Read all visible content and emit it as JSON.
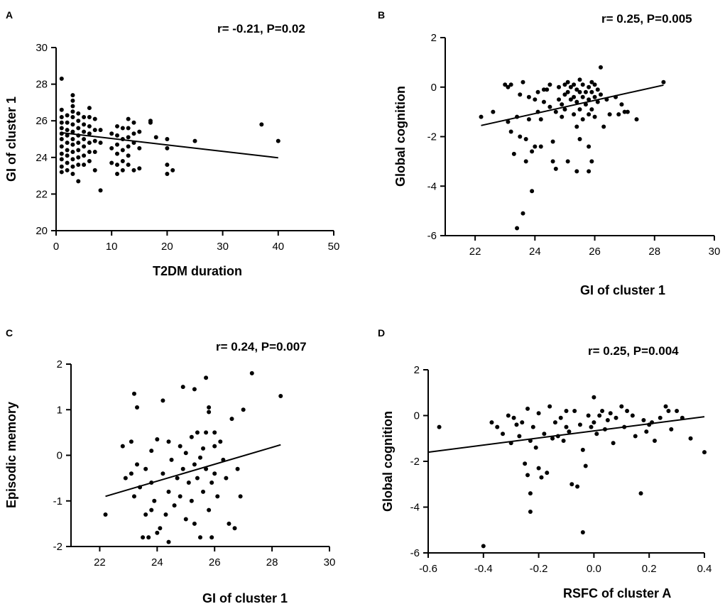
{
  "chart_data": [
    {
      "panel": "A",
      "type": "scatter",
      "stat_text": "r= -0.21, P=0.02",
      "xlabel": "T2DM duration",
      "ylabel": "GI of cluster 1",
      "xlim": [
        0,
        50
      ],
      "ylim": [
        20,
        30
      ],
      "xticks": [
        "0",
        "10",
        "20",
        "30",
        "40",
        "50"
      ],
      "yticks": [
        "20",
        "22",
        "24",
        "26",
        "28",
        "30"
      ],
      "fit_line": {
        "x": [
          1,
          40
        ],
        "y": [
          25.35,
          23.98
        ]
      },
      "points": [
        [
          1,
          28.3
        ],
        [
          1,
          26.6
        ],
        [
          1,
          26.2
        ],
        [
          1,
          25.9
        ],
        [
          1,
          25.6
        ],
        [
          1,
          25.3
        ],
        [
          1,
          25
        ],
        [
          1,
          24.6
        ],
        [
          1,
          24.2
        ],
        [
          1,
          23.9
        ],
        [
          1,
          23.5
        ],
        [
          1,
          23.2
        ],
        [
          2,
          26.3
        ],
        [
          2,
          25.9
        ],
        [
          2,
          25.5
        ],
        [
          2,
          25.2
        ],
        [
          2,
          24.8
        ],
        [
          2,
          24.4
        ],
        [
          2,
          24.1
        ],
        [
          2,
          23.7
        ],
        [
          2,
          23.3
        ],
        [
          3,
          27.4
        ],
        [
          3,
          27.1
        ],
        [
          3,
          26.8
        ],
        [
          3,
          26.5
        ],
        [
          3,
          26.2
        ],
        [
          3,
          25.8
        ],
        [
          3,
          25.4
        ],
        [
          3,
          25
        ],
        [
          3,
          24.7
        ],
        [
          3,
          24.3
        ],
        [
          3,
          23.9
        ],
        [
          3,
          23.5
        ],
        [
          3,
          23.1
        ],
        [
          4,
          26.4
        ],
        [
          4,
          26
        ],
        [
          4,
          25.6
        ],
        [
          4,
          25.2
        ],
        [
          4,
          24.8
        ],
        [
          4,
          24.4
        ],
        [
          4,
          24
        ],
        [
          4,
          23.6
        ],
        [
          4,
          22.7
        ],
        [
          5,
          26.2
        ],
        [
          5,
          25.8
        ],
        [
          5,
          25.4
        ],
        [
          5,
          25
        ],
        [
          5,
          24.6
        ],
        [
          5,
          24.1
        ],
        [
          5,
          23.6
        ],
        [
          6,
          26.7
        ],
        [
          6,
          26.2
        ],
        [
          6,
          25.7
        ],
        [
          6,
          25.3
        ],
        [
          6,
          24.8
        ],
        [
          6,
          24.3
        ],
        [
          6,
          23.8
        ],
        [
          7,
          26.1
        ],
        [
          7,
          25.5
        ],
        [
          7,
          24.9
        ],
        [
          7,
          24.3
        ],
        [
          7,
          23.3
        ],
        [
          8,
          25.5
        ],
        [
          8,
          24.8
        ],
        [
          8,
          22.2
        ],
        [
          10,
          25.3
        ],
        [
          10,
          24.5
        ],
        [
          10,
          23.7
        ],
        [
          11,
          25.7
        ],
        [
          11,
          25.2
        ],
        [
          11,
          24.7
        ],
        [
          11,
          24.2
        ],
        [
          11,
          23.6
        ],
        [
          11,
          23.1
        ],
        [
          12,
          25.6
        ],
        [
          12,
          25
        ],
        [
          12,
          24.4
        ],
        [
          12,
          23.8
        ],
        [
          12,
          23.3
        ],
        [
          13,
          26.1
        ],
        [
          13,
          25.6
        ],
        [
          13,
          25.1
        ],
        [
          13,
          24.6
        ],
        [
          13,
          24.1
        ],
        [
          13,
          23.6
        ],
        [
          14,
          25.9
        ],
        [
          14,
          25.3
        ],
        [
          14,
          24.8
        ],
        [
          14,
          23.3
        ],
        [
          15,
          25.4
        ],
        [
          15,
          24.5
        ],
        [
          15,
          23.4
        ],
        [
          17,
          26
        ],
        [
          17,
          25.9
        ],
        [
          18,
          25.1
        ],
        [
          20,
          25
        ],
        [
          20,
          24.5
        ],
        [
          20,
          23.6
        ],
        [
          20,
          23.1
        ],
        [
          21,
          23.3
        ],
        [
          25,
          24.9
        ],
        [
          37,
          25.8
        ],
        [
          40,
          24.9
        ]
      ]
    },
    {
      "panel": "B",
      "type": "scatter",
      "stat_text": "r= 0.25, P=0.005",
      "xlabel": "GI of cluster 1",
      "ylabel": "Global cognition",
      "xlim": [
        21,
        30
      ],
      "ylim": [
        -6,
        2
      ],
      "xticks": [
        "22",
        "24",
        "26",
        "28",
        "30"
      ],
      "yticks": [
        "-6",
        "-4",
        "-2",
        "0",
        "2"
      ],
      "fit_line": {
        "x": [
          22.2,
          28.3
        ],
        "y": [
          -1.55,
          0.08
        ]
      },
      "points": [
        [
          22.2,
          -1.2
        ],
        [
          22.6,
          -1
        ],
        [
          23,
          0.1
        ],
        [
          23.1,
          0
        ],
        [
          23.2,
          0.1
        ],
        [
          23.1,
          -1.4
        ],
        [
          23.2,
          -1.8
        ],
        [
          23.3,
          -2.7
        ],
        [
          23.4,
          -1.2
        ],
        [
          23.4,
          -5.7
        ],
        [
          23.5,
          -2
        ],
        [
          23.5,
          -0.3
        ],
        [
          23.6,
          0.2
        ],
        [
          23.6,
          -5.1
        ],
        [
          23.7,
          -3
        ],
        [
          23.7,
          -2.1
        ],
        [
          23.8,
          -0.4
        ],
        [
          23.8,
          -1.3
        ],
        [
          23.9,
          -4.2
        ],
        [
          23.9,
          -2.6
        ],
        [
          24,
          -0.5
        ],
        [
          24,
          -2.4
        ],
        [
          24.1,
          -0.2
        ],
        [
          24.1,
          -1
        ],
        [
          24.2,
          -1.3
        ],
        [
          24.2,
          -2.4
        ],
        [
          24.3,
          -0.1
        ],
        [
          24.3,
          -0.6
        ],
        [
          24.4,
          -0.1
        ],
        [
          24.5,
          0.1
        ],
        [
          24.5,
          -0.8
        ],
        [
          24.6,
          -2.2
        ],
        [
          24.6,
          -3
        ],
        [
          24.7,
          -1
        ],
        [
          24.7,
          -3.3
        ],
        [
          24.8,
          0
        ],
        [
          24.8,
          -0.5
        ],
        [
          24.9,
          -0.7
        ],
        [
          24.9,
          -1.2
        ],
        [
          25,
          0.1
        ],
        [
          25,
          -0.3
        ],
        [
          25,
          -0.9
        ],
        [
          25.1,
          0.2
        ],
        [
          25.1,
          -0.2
        ],
        [
          25.1,
          -3
        ],
        [
          25.2,
          0
        ],
        [
          25.2,
          -0.5
        ],
        [
          25.3,
          0.1
        ],
        [
          25.3,
          -0.4
        ],
        [
          25.3,
          -1.1
        ],
        [
          25.4,
          -0.1
        ],
        [
          25.4,
          -0.6
        ],
        [
          25.4,
          -1.6
        ],
        [
          25.4,
          -3.4
        ],
        [
          25.5,
          0.3
        ],
        [
          25.5,
          -0.2
        ],
        [
          25.5,
          -0.9
        ],
        [
          25.5,
          -2.1
        ],
        [
          25.6,
          0.1
        ],
        [
          25.6,
          -0.4
        ],
        [
          25.6,
          -1.3
        ],
        [
          25.7,
          -0.2
        ],
        [
          25.7,
          -0.7
        ],
        [
          25.8,
          0
        ],
        [
          25.8,
          -0.5
        ],
        [
          25.8,
          -1.1
        ],
        [
          25.8,
          -2.4
        ],
        [
          25.8,
          -3.4
        ],
        [
          25.9,
          0.2
        ],
        [
          25.9,
          -0.2
        ],
        [
          25.9,
          -0.9
        ],
        [
          25.9,
          -3
        ],
        [
          26,
          0.1
        ],
        [
          26,
          -0.4
        ],
        [
          26,
          -1.2
        ],
        [
          26.1,
          -0.1
        ],
        [
          26.1,
          -0.6
        ],
        [
          26.2,
          0.8
        ],
        [
          26.2,
          -0.3
        ],
        [
          26.3,
          -1.6
        ],
        [
          26.4,
          -0.5
        ],
        [
          26.5,
          -1.1
        ],
        [
          26.7,
          -0.4
        ],
        [
          26.8,
          -1.1
        ],
        [
          26.9,
          -0.7
        ],
        [
          27,
          -1
        ],
        [
          27.1,
          -1
        ],
        [
          27.4,
          -1.3
        ],
        [
          28.3,
          0.2
        ]
      ]
    },
    {
      "panel": "C",
      "type": "scatter",
      "stat_text": "r= 0.24, P=0.007",
      "xlabel": "GI of cluster 1",
      "ylabel": "Episodic memory",
      "xlim": [
        21,
        30
      ],
      "ylim": [
        -2,
        2
      ],
      "xticks": [
        "22",
        "24",
        "26",
        "28",
        "30"
      ],
      "yticks": [
        "-2",
        "-1",
        "0",
        "1",
        "2"
      ],
      "fit_line": {
        "x": [
          22.2,
          28.3
        ],
        "y": [
          -0.9,
          0.23
        ]
      },
      "points": [
        [
          22.2,
          -1.3
        ],
        [
          22.8,
          0.2
        ],
        [
          22.9,
          -0.5
        ],
        [
          23.1,
          0.3
        ],
        [
          23.1,
          -0.4
        ],
        [
          23.2,
          1.35
        ],
        [
          23.2,
          -0.9
        ],
        [
          23.3,
          1.05
        ],
        [
          23.3,
          -0.2
        ],
        [
          23.4,
          -0.7
        ],
        [
          23.5,
          -1.8
        ],
        [
          23.6,
          -0.3
        ],
        [
          23.6,
          -1.3
        ],
        [
          23.7,
          -1.8
        ],
        [
          23.8,
          0.1
        ],
        [
          23.8,
          -0.6
        ],
        [
          23.8,
          -1.2
        ],
        [
          23.9,
          -1
        ],
        [
          24,
          -1.7
        ],
        [
          24,
          0.35
        ],
        [
          24.1,
          -1.6
        ],
        [
          24.2,
          1.2
        ],
        [
          24.2,
          -0.4
        ],
        [
          24.3,
          -1.3
        ],
        [
          24.4,
          0.3
        ],
        [
          24.4,
          -0.8
        ],
        [
          24.4,
          -1.9
        ],
        [
          24.5,
          -0.1
        ],
        [
          24.6,
          -1.1
        ],
        [
          24.7,
          -0.5
        ],
        [
          24.8,
          0.2
        ],
        [
          24.8,
          -0.9
        ],
        [
          24.9,
          1.5
        ],
        [
          24.9,
          -0.3
        ],
        [
          25,
          -1.4
        ],
        [
          25,
          0.05
        ],
        [
          25.1,
          -0.6
        ],
        [
          25.2,
          0.4
        ],
        [
          25.2,
          -1
        ],
        [
          25.3,
          1.45
        ],
        [
          25.3,
          -0.2
        ],
        [
          25.3,
          -1.5
        ],
        [
          25.4,
          0.5
        ],
        [
          25.4,
          -0.5
        ],
        [
          25.5,
          -0.05
        ],
        [
          25.5,
          -1.8
        ],
        [
          25.6,
          0.15
        ],
        [
          25.6,
          -0.8
        ],
        [
          25.7,
          1.7
        ],
        [
          25.7,
          0.5
        ],
        [
          25.7,
          -0.3
        ],
        [
          25.8,
          1.05
        ],
        [
          25.8,
          0.95
        ],
        [
          25.8,
          -1.2
        ],
        [
          25.9,
          -0.6
        ],
        [
          25.9,
          -1.8
        ],
        [
          26,
          0.5
        ],
        [
          26,
          0.2
        ],
        [
          26,
          -0.4
        ],
        [
          26.1,
          -0.9
        ],
        [
          26.2,
          0.3
        ],
        [
          26.3,
          -0.1
        ],
        [
          26.4,
          -0.5
        ],
        [
          26.5,
          -1.5
        ],
        [
          26.6,
          0.8
        ],
        [
          26.7,
          -1.6
        ],
        [
          26.8,
          -0.3
        ],
        [
          26.9,
          -0.9
        ],
        [
          27,
          1
        ],
        [
          27.3,
          1.8
        ],
        [
          28.3,
          1.3
        ]
      ]
    },
    {
      "panel": "D",
      "type": "scatter",
      "stat_text": "r= 0.25, P=0.004",
      "xlabel": "RSFC of cluster A",
      "ylabel": "Global cognition",
      "xlim": [
        -0.6,
        0.4
      ],
      "ylim": [
        -6,
        2
      ],
      "xticks": [
        "-0.6",
        "-0.4",
        "-0.2",
        "0.0",
        "0.2",
        "0.4"
      ],
      "yticks": [
        "-6",
        "-4",
        "-2",
        "0",
        "2"
      ],
      "fit_line": {
        "x": [
          -0.6,
          0.4
        ],
        "y": [
          -1.6,
          -0.05
        ]
      },
      "points": [
        [
          -0.56,
          -0.5
        ],
        [
          -0.4,
          -5.7
        ],
        [
          -0.37,
          -0.3
        ],
        [
          -0.35,
          -0.5
        ],
        [
          -0.33,
          -0.8
        ],
        [
          -0.31,
          0
        ],
        [
          -0.3,
          -1.2
        ],
        [
          -0.29,
          -0.1
        ],
        [
          -0.28,
          -0.4
        ],
        [
          -0.27,
          -0.9
        ],
        [
          -0.26,
          -0.3
        ],
        [
          -0.25,
          -2.1
        ],
        [
          -0.24,
          0.3
        ],
        [
          -0.24,
          -2.6
        ],
        [
          -0.23,
          -1.1
        ],
        [
          -0.23,
          -3.4
        ],
        [
          -0.23,
          -4.2
        ],
        [
          -0.22,
          -0.5
        ],
        [
          -0.21,
          -1.4
        ],
        [
          -0.2,
          -2.3
        ],
        [
          -0.2,
          0.1
        ],
        [
          -0.19,
          -2.7
        ],
        [
          -0.18,
          -0.8
        ],
        [
          -0.17,
          -2.5
        ],
        [
          -0.16,
          0.4
        ],
        [
          -0.15,
          -1.0
        ],
        [
          -0.14,
          -0.3
        ],
        [
          -0.13,
          -0.9
        ],
        [
          -0.12,
          -0.1
        ],
        [
          -0.11,
          -1.1
        ],
        [
          -0.1,
          0.2
        ],
        [
          -0.1,
          -0.5
        ],
        [
          -0.09,
          -0.7
        ],
        [
          -0.08,
          -3.0
        ],
        [
          -0.07,
          0.2
        ],
        [
          -0.06,
          -3.1
        ],
        [
          -0.05,
          -0.4
        ],
        [
          -0.04,
          -1.5
        ],
        [
          -0.04,
          -5.1
        ],
        [
          -0.03,
          -2.2
        ],
        [
          -0.02,
          0.0
        ],
        [
          -0.01,
          -0.5
        ],
        [
          0,
          -0.3
        ],
        [
          0,
          0.8
        ],
        [
          0.01,
          -0.8
        ],
        [
          0.02,
          0.0
        ],
        [
          0.03,
          0.2
        ],
        [
          0.04,
          -0.6
        ],
        [
          0.05,
          -0.2
        ],
        [
          0.06,
          0.1
        ],
        [
          0.07,
          -1.2
        ],
        [
          0.08,
          -0.1
        ],
        [
          0.1,
          0.4
        ],
        [
          0.11,
          -0.5
        ],
        [
          0.12,
          0.2
        ],
        [
          0.14,
          0.0
        ],
        [
          0.15,
          -0.9
        ],
        [
          0.17,
          -3.4
        ],
        [
          0.18,
          -0.2
        ],
        [
          0.19,
          -0.7
        ],
        [
          0.2,
          -0.4
        ],
        [
          0.21,
          -0.3
        ],
        [
          0.22,
          -1.1
        ],
        [
          0.24,
          -0.1
        ],
        [
          0.26,
          0.4
        ],
        [
          0.27,
          0.2
        ],
        [
          0.28,
          -0.6
        ],
        [
          0.3,
          0.2
        ],
        [
          0.32,
          -0.1
        ],
        [
          0.35,
          -1.0
        ],
        [
          0.4,
          -1.6
        ]
      ]
    }
  ]
}
